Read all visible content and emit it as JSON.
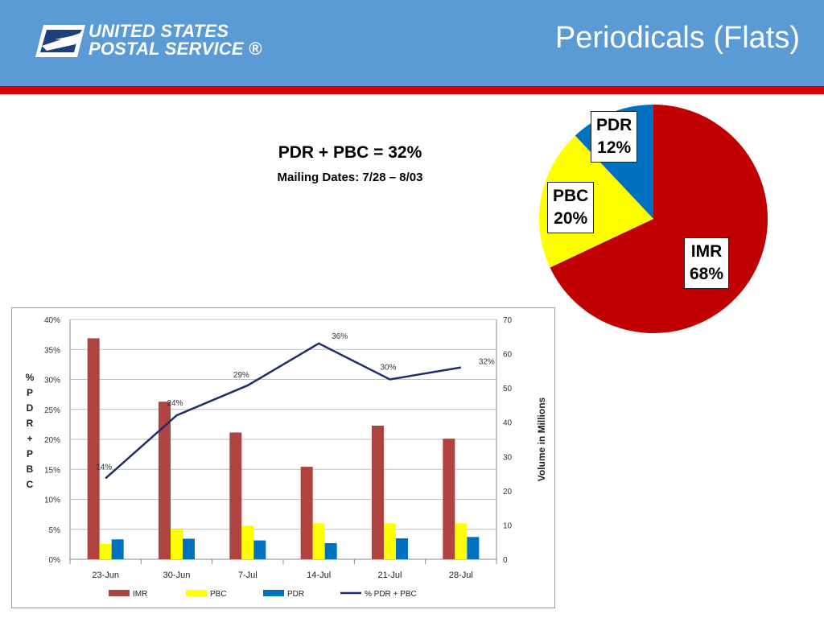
{
  "header": {
    "logo_line1": "UNITED STATES",
    "logo_line2": "POSTAL SERVICE ®",
    "title": "Periodicals (Flats)",
    "colors": {
      "header_bg": "#5b9bd5",
      "accent_bar": "#e00000"
    }
  },
  "summary": {
    "headline": "PDR + PBC  = 32%",
    "mailing_dates": "Mailing Dates: 7/28 – 8/03"
  },
  "chart_data": [
    {
      "type": "pie",
      "slices": [
        {
          "name": "IMR",
          "value": 68,
          "label": "IMR\n68%",
          "color": "#c00000"
        },
        {
          "name": "PBC",
          "value": 20,
          "label": "PBC\n20%",
          "color": "#ffff00"
        },
        {
          "name": "PDR",
          "value": 12,
          "label": "PDR\n12%",
          "color": "#0070c0"
        }
      ]
    },
    {
      "type": "bar",
      "categories": [
        "23-Jun",
        "30-Jun",
        "7-Jul",
        "14-Jul",
        "21-Jul",
        "28-Jul"
      ],
      "series": [
        {
          "name": "IMR",
          "axis": "right",
          "color": "#b0433f",
          "values": [
            64.5,
            46,
            37,
            27,
            39,
            35.2
          ]
        },
        {
          "name": "PBC",
          "axis": "right",
          "color": "#ffff00",
          "values": [
            4.5,
            8.7,
            9.8,
            10.5,
            10.5,
            10.5
          ]
        },
        {
          "name": "PDR",
          "axis": "right",
          "color": "#0070c0",
          "values": [
            5.8,
            6,
            5.5,
            4.7,
            6.1,
            6.5
          ]
        },
        {
          "name": "% PDR + PBC",
          "type": "line",
          "axis": "left",
          "color": "#1f2d6b",
          "values": [
            13.5,
            24,
            29,
            36,
            30,
            32
          ],
          "data_labels": [
            "14%",
            "24%",
            "29%",
            "36%",
            "30%",
            "32%"
          ]
        }
      ],
      "y_left": {
        "label": "% PDR + PBC",
        "min": 0,
        "max": 40,
        "ticks": [
          "0%",
          "5%",
          "10%",
          "15%",
          "20%",
          "25%",
          "30%",
          "35%",
          "40%"
        ]
      },
      "y_right": {
        "label": "Volume in Millions",
        "min": 0,
        "max": 70,
        "ticks": [
          "0",
          "10",
          "20",
          "30",
          "40",
          "50",
          "60",
          "70"
        ]
      },
      "legend_position": "bottom",
      "grid": true
    }
  ]
}
